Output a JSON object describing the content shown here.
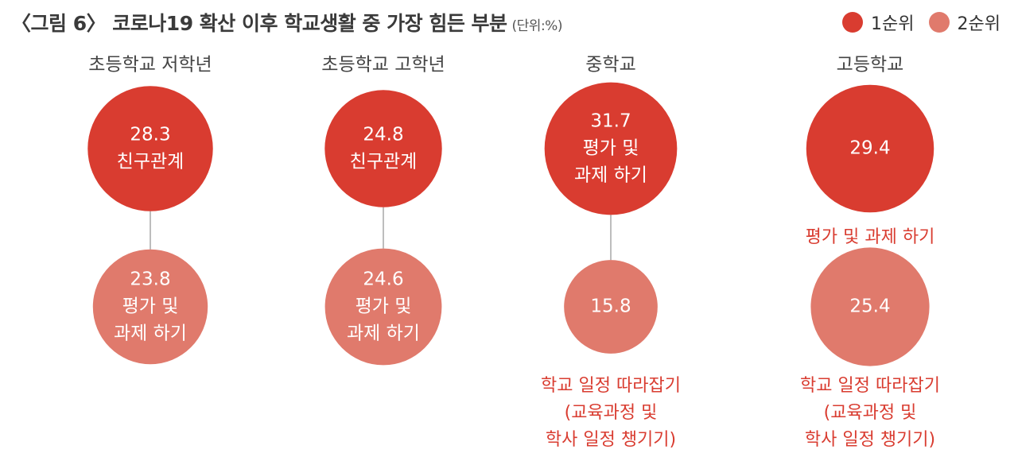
{
  "title": "〈그림 6〉 코로나19 확산 이후 학교생활 중 가장 힘든 부분",
  "unit": "(단위:%)",
  "colors": {
    "rank1": "#d93c30",
    "rank2": "#e07a6c",
    "connector": "#bdbdbd",
    "label_text": "#ffffff",
    "caption_text": "#d93c30",
    "group_text": "#444444"
  },
  "chart_data": {
    "type": "bubble",
    "title": "〈그림 6〉 코로나19 확산 이후 학교생활 중 가장 힘든 부분",
    "unit": "(단위:%)",
    "legend": [
      "1순위",
      "2순위"
    ],
    "legend_position": "top-right",
    "groups": [
      {
        "name": "초등학교 저학년",
        "first": {
          "value": 28.3,
          "label_lines": [
            "친구관계"
          ],
          "caption_lines": []
        },
        "second": {
          "value": 23.8,
          "label_lines": [
            "평가 및",
            "과제 하기"
          ],
          "caption_lines": []
        }
      },
      {
        "name": "초등학교 고학년",
        "first": {
          "value": 24.8,
          "label_lines": [
            "친구관계"
          ],
          "caption_lines": []
        },
        "second": {
          "value": 24.6,
          "label_lines": [
            "평가 및",
            "과제 하기"
          ],
          "caption_lines": []
        }
      },
      {
        "name": "중학교",
        "first": {
          "value": 31.7,
          "label_lines": [
            "평가 및",
            "과제 하기"
          ],
          "caption_lines": []
        },
        "second": {
          "value": 15.8,
          "label_lines": [],
          "caption_lines": [
            "학교 일정 따라잡기",
            "(교육과정 및",
            "학사 일정 챙기기)"
          ]
        }
      },
      {
        "name": "고등학교",
        "first": {
          "value": 29.4,
          "label_lines": [],
          "caption_lines": [
            "평가 및 과제 하기"
          ]
        },
        "second": {
          "value": 25.4,
          "label_lines": [],
          "caption_lines": [
            "학교 일정 따라잡기",
            "(교육과정 및",
            "학사 일정 챙기기)"
          ]
        }
      }
    ]
  }
}
